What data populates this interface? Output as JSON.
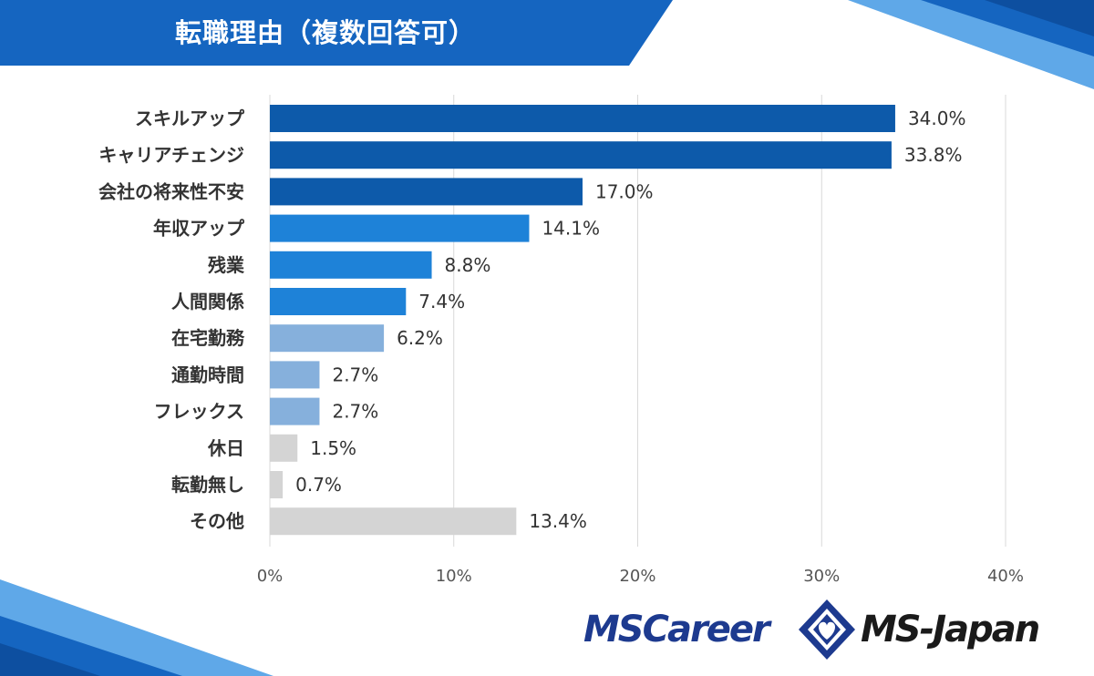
{
  "header": {
    "title": "転職理由（複数回答可）"
  },
  "colors": {
    "dark_blue": "#0d5aaa",
    "mid_blue": "#1e82d8",
    "light_blue": "#86b0dc",
    "gray": "#d4d4d4",
    "banner_blue": "#1565c0",
    "grid": "#d9d9d9",
    "text": "#333333"
  },
  "chart_data": {
    "type": "bar",
    "orientation": "horizontal",
    "title": "転職理由（複数回答可）",
    "categories": [
      "スキルアップ",
      "キャリアチェンジ",
      "会社の将来性不安",
      "年収アップ",
      "残業",
      "人間関係",
      "在宅勤務",
      "通勤時間",
      "フレックス",
      "休日",
      "転勤無し",
      "その他"
    ],
    "values": [
      34.0,
      33.8,
      17.0,
      14.1,
      8.8,
      7.4,
      6.2,
      2.7,
      2.7,
      1.5,
      0.7,
      13.4
    ],
    "value_labels": [
      "34.0%",
      "33.8%",
      "17.0%",
      "14.1%",
      "8.8%",
      "7.4%",
      "6.2%",
      "2.7%",
      "2.7%",
      "1.5%",
      "0.7%",
      "13.4%"
    ],
    "bar_color_groups": [
      "dark_blue",
      "dark_blue",
      "dark_blue",
      "mid_blue",
      "mid_blue",
      "mid_blue",
      "light_blue",
      "light_blue",
      "light_blue",
      "gray",
      "gray",
      "gray"
    ],
    "x_ticks": [
      "0%",
      "10%",
      "20%",
      "30%",
      "40%"
    ],
    "xlim": [
      0,
      40
    ],
    "xlabel": "",
    "ylabel": "",
    "grid": true,
    "legend": "none"
  },
  "logos": {
    "ms_career": "MSCareer",
    "ms_japan": "MS-Japan",
    "mark_icon": "diamond-heart-icon"
  }
}
